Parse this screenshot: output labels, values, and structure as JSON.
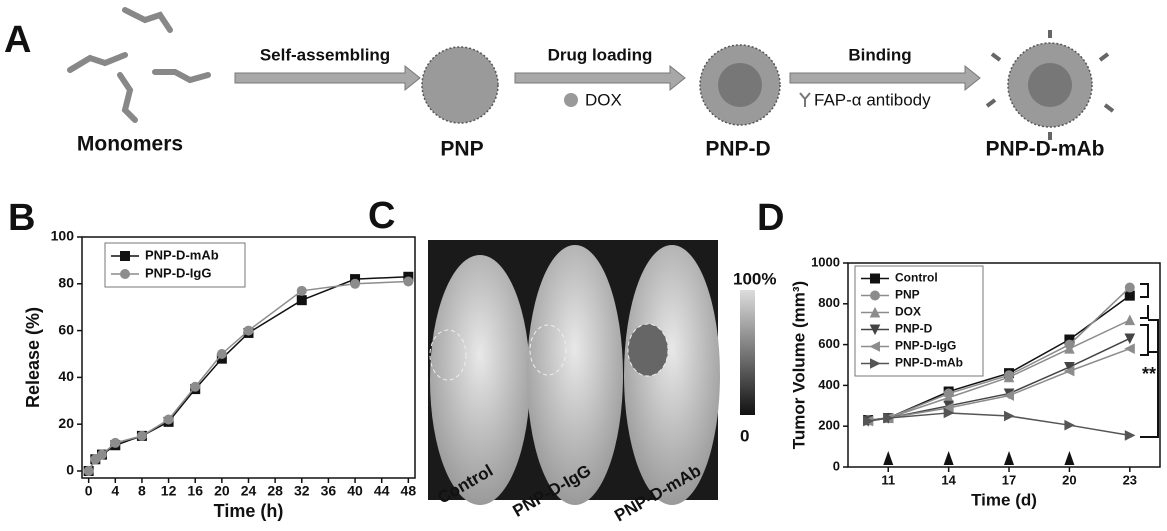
{
  "panel_a": {
    "label": "A",
    "stages": [
      "Monomers",
      "PNP",
      "PNP-D",
      "PNP-D-mAb"
    ],
    "steps": [
      "Self-assembling",
      "Drug loading",
      "Binding"
    ],
    "step_notes": [
      "DOX",
      "FAP-α antibody"
    ]
  },
  "panel_c": {
    "label": "C",
    "scale_max": "100%",
    "scale_min": "0",
    "groups": [
      "Control",
      "PNP-D-IgG",
      "PNP-D-mAb"
    ]
  },
  "chart_data": [
    {
      "type": "line",
      "label": "B",
      "xlabel": "Time (h)",
      "ylabel": "Release (%)",
      "x": [
        0,
        1,
        2,
        4,
        8,
        12,
        16,
        20,
        24,
        32,
        40,
        48
      ],
      "xlim": [
        -1,
        49
      ],
      "xticks": [
        0,
        4,
        8,
        12,
        16,
        20,
        24,
        28,
        32,
        36,
        40,
        44,
        48
      ],
      "ylim": [
        -3,
        100
      ],
      "yticks": [
        0,
        20,
        40,
        60,
        80,
        100
      ],
      "series": [
        {
          "name": "PNP-D-mAb",
          "color": "#111111",
          "marker": "square",
          "values": [
            0,
            5,
            7,
            11,
            15,
            21,
            35,
            48,
            59,
            73,
            82,
            83
          ]
        },
        {
          "name": "PNP-D-IgG",
          "color": "#8c8c8c",
          "marker": "circle",
          "values": [
            0,
            5,
            7,
            12,
            15,
            22,
            36,
            50,
            60,
            77,
            80,
            81
          ]
        }
      ]
    },
    {
      "type": "line",
      "label": "D",
      "xlabel": "Time (d)",
      "ylabel": "Tumor Volume (mm³)",
      "x": [
        10,
        11,
        14,
        17,
        20,
        23
      ],
      "xlim": [
        9,
        24.5
      ],
      "xticks": [
        11,
        14,
        17,
        20,
        23
      ],
      "ylim": [
        0,
        1000
      ],
      "yticks": [
        0,
        200,
        400,
        600,
        800,
        1000
      ],
      "dose_x": [
        11,
        14,
        17,
        20
      ],
      "annotation": "**",
      "series": [
        {
          "name": "Control",
          "color": "#111111",
          "marker": "square",
          "values": [
            230,
            240,
            370,
            460,
            625,
            840
          ]
        },
        {
          "name": "PNP",
          "color": "#8c8c8c",
          "marker": "circle",
          "values": [
            230,
            240,
            360,
            450,
            600,
            880
          ]
        },
        {
          "name": "DOX",
          "color": "#8c8c8c",
          "marker": "up",
          "values": [
            230,
            240,
            340,
            440,
            580,
            720
          ]
        },
        {
          "name": "PNP-D",
          "color": "#444444",
          "marker": "down",
          "values": [
            225,
            240,
            300,
            360,
            490,
            630
          ]
        },
        {
          "name": "PNP-D-IgG",
          "color": "#8c8c8c",
          "marker": "left",
          "values": [
            225,
            240,
            290,
            350,
            470,
            580
          ]
        },
        {
          "name": "PNP-D-mAb",
          "color": "#555555",
          "marker": "right",
          "values": [
            225,
            240,
            265,
            250,
            205,
            155
          ]
        }
      ]
    }
  ]
}
